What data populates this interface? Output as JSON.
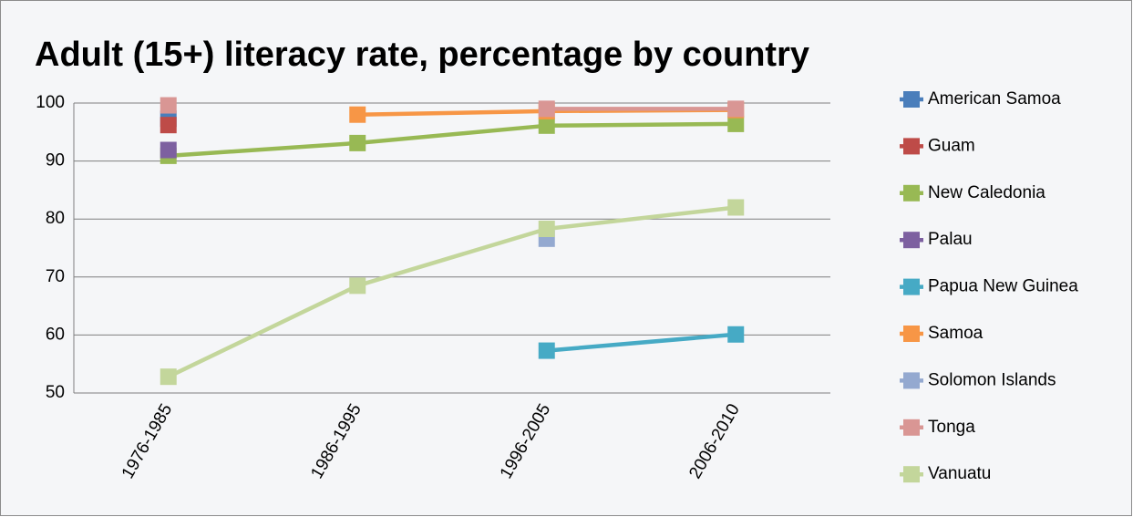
{
  "chart_data": {
    "type": "line",
    "title": "Adult (15+) literacy rate, percentage by country",
    "categories": [
      "1976-1985",
      "1986-1995",
      "1996-2005",
      "2006-2010"
    ],
    "ylim": [
      50,
      100
    ],
    "yticks": [
      50,
      60,
      70,
      80,
      90,
      100
    ],
    "grid": true,
    "legend": "right",
    "series": [
      {
        "name": "American Samoa",
        "color": "#4a7ebb",
        "values": [
          97.3,
          null,
          null,
          null
        ]
      },
      {
        "name": "Guam",
        "color": "#be4b48",
        "values": [
          96.2,
          null,
          null,
          null
        ]
      },
      {
        "name": "New Caledonia",
        "color": "#98b954",
        "values": [
          90.9,
          93.1,
          96.1,
          96.4
        ]
      },
      {
        "name": "Palau",
        "color": "#7d60a0",
        "values": [
          91.9,
          null,
          null,
          null
        ]
      },
      {
        "name": "Papua New Guinea",
        "color": "#46aac5",
        "values": [
          null,
          null,
          57.3,
          60.1
        ]
      },
      {
        "name": "Samoa",
        "color": "#f79646",
        "values": [
          null,
          98.0,
          98.6,
          98.8
        ]
      },
      {
        "name": "Solomon Islands",
        "color": "#94a9d0",
        "values": [
          null,
          null,
          76.6,
          null
        ]
      },
      {
        "name": "Tonga",
        "color": "#d99694",
        "values": [
          99.6,
          null,
          99.0,
          99.0
        ]
      },
      {
        "name": "Vanuatu",
        "color": "#c3d69b",
        "values": [
          52.8,
          68.5,
          78.3,
          82.0
        ]
      }
    ]
  }
}
